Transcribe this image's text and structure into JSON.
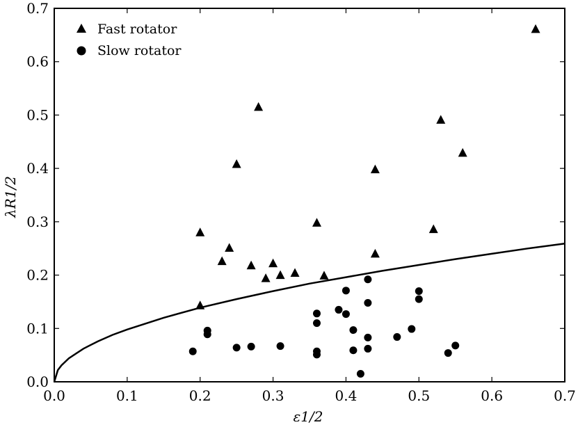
{
  "chart_data": {
    "type": "scatter",
    "xlabel": "ε1/2",
    "ylabel": "λR1/2",
    "xlim": [
      0.0,
      0.7
    ],
    "ylim": [
      0.0,
      0.7
    ],
    "xticks": [
      "0.0",
      "0.1",
      "0.2",
      "0.3",
      "0.4",
      "0.5",
      "0.6",
      "0.7"
    ],
    "yticks": [
      "0.0",
      "0.1",
      "0.2",
      "0.3",
      "0.4",
      "0.5",
      "0.6",
      "0.7"
    ],
    "grid": false,
    "legend_position": "top-left",
    "series": [
      {
        "name": "Fast rotator",
        "marker": "triangle",
        "points": [
          [
            0.2,
            0.28
          ],
          [
            0.2,
            0.143
          ],
          [
            0.23,
            0.226
          ],
          [
            0.24,
            0.251
          ],
          [
            0.25,
            0.408
          ],
          [
            0.27,
            0.218
          ],
          [
            0.28,
            0.515
          ],
          [
            0.29,
            0.194
          ],
          [
            0.3,
            0.222
          ],
          [
            0.31,
            0.2
          ],
          [
            0.33,
            0.204
          ],
          [
            0.36,
            0.298
          ],
          [
            0.37,
            0.199
          ],
          [
            0.44,
            0.24
          ],
          [
            0.44,
            0.398
          ],
          [
            0.52,
            0.286
          ],
          [
            0.53,
            0.491
          ],
          [
            0.56,
            0.429
          ],
          [
            0.66,
            0.661
          ]
        ]
      },
      {
        "name": "Slow rotator",
        "marker": "circle",
        "points": [
          [
            0.19,
            0.057
          ],
          [
            0.21,
            0.096
          ],
          [
            0.21,
            0.089
          ],
          [
            0.25,
            0.064
          ],
          [
            0.27,
            0.066
          ],
          [
            0.31,
            0.067
          ],
          [
            0.36,
            0.128
          ],
          [
            0.36,
            0.11
          ],
          [
            0.36,
            0.057
          ],
          [
            0.36,
            0.051
          ],
          [
            0.39,
            0.135
          ],
          [
            0.4,
            0.171
          ],
          [
            0.4,
            0.127
          ],
          [
            0.41,
            0.097
          ],
          [
            0.41,
            0.059
          ],
          [
            0.42,
            0.015
          ],
          [
            0.43,
            0.192
          ],
          [
            0.43,
            0.083
          ],
          [
            0.43,
            0.062
          ],
          [
            0.43,
            0.148
          ],
          [
            0.47,
            0.084
          ],
          [
            0.49,
            0.099
          ],
          [
            0.5,
            0.17
          ],
          [
            0.5,
            0.155
          ],
          [
            0.54,
            0.054
          ],
          [
            0.55,
            0.068
          ]
        ]
      }
    ],
    "curve": {
      "style": "solid",
      "points": [
        [
          0.0,
          0.0
        ],
        [
          0.005,
          0.022
        ],
        [
          0.01,
          0.031
        ],
        [
          0.02,
          0.044
        ],
        [
          0.04,
          0.062
        ],
        [
          0.06,
          0.076
        ],
        [
          0.08,
          0.088
        ],
        [
          0.1,
          0.098
        ],
        [
          0.15,
          0.12
        ],
        [
          0.2,
          0.139
        ],
        [
          0.25,
          0.155
        ],
        [
          0.3,
          0.17
        ],
        [
          0.35,
          0.184
        ],
        [
          0.4,
          0.196
        ],
        [
          0.45,
          0.208
        ],
        [
          0.5,
          0.219
        ],
        [
          0.55,
          0.23
        ],
        [
          0.6,
          0.24
        ],
        [
          0.65,
          0.25
        ],
        [
          0.7,
          0.259
        ]
      ]
    },
    "colors": {
      "marker": "#000000",
      "axis": "#000000"
    }
  }
}
